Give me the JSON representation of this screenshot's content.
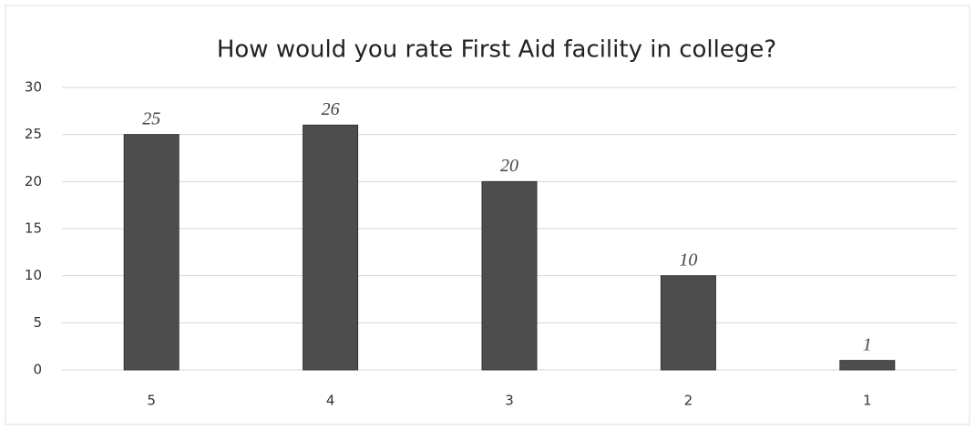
{
  "chart_data": {
    "type": "bar",
    "title": "How would you rate First Aid facility in college?",
    "categories": [
      "5",
      "4",
      "3",
      "2",
      "1"
    ],
    "values": [
      25,
      26,
      20,
      10,
      1
    ],
    "color": "#4d4d4d",
    "ylim": [
      0,
      30
    ],
    "yticks": [
      0,
      5,
      10,
      15,
      20,
      25,
      30
    ],
    "grid": true
  }
}
